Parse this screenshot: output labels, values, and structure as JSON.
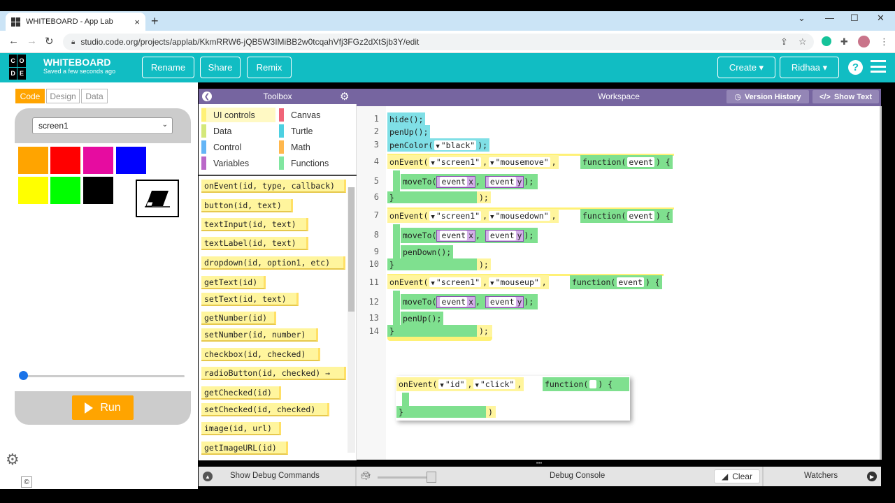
{
  "browser": {
    "tab_title": "WHITEBOARD - App Lab",
    "tab_close": "×",
    "new_tab": "+",
    "url": "studio.code.org/projects/applab/KkmRRW6-jQB5W3IMiBB2w0tcqahVfj3FGz2dXtSjb3Y/edit"
  },
  "header": {
    "logo_letters": [
      "C",
      "O",
      "D",
      "E"
    ],
    "project_title": "WHITEBOARD",
    "saved_status": "Saved a few seconds ago",
    "rename": "Rename",
    "share": "Share",
    "remix": "Remix",
    "create": "Create ▾",
    "user": "Ridhaa ▾",
    "help": "?"
  },
  "modes": {
    "code": "Code",
    "design": "Design",
    "data": "Data"
  },
  "app_preview": {
    "screen_select": "screen1",
    "swatch_colors": [
      "#ffa400",
      "#ff0000",
      "#e60ca0",
      "#0000ff",
      "#ffff00",
      "#00ff00",
      "#000000"
    ],
    "slider_value": 0.02,
    "run": "Run"
  },
  "toolbox": {
    "title": "Toolbox",
    "categories": [
      {
        "label": "UI controls",
        "color": "#fff176"
      },
      {
        "label": "Canvas",
        "color": "#f06478"
      },
      {
        "label": "Data",
        "color": "#d4e87a"
      },
      {
        "label": "Turtle",
        "color": "#4dd0e1"
      },
      {
        "label": "Control",
        "color": "#64b5f6"
      },
      {
        "label": "Math",
        "color": "#ffb74d"
      },
      {
        "label": "Variables",
        "color": "#ba68c8"
      },
      {
        "label": "Functions",
        "color": "#81e6a0"
      }
    ],
    "blocks": [
      "onEvent(id, type, callback)",
      "button(id, text)",
      "textInput(id, text)",
      "textLabel(id, text)",
      "dropdown(id, option1, etc)",
      "getText(id)",
      "setText(id, text)",
      "getNumber(id)",
      "setNumber(id, number)",
      "checkbox(id, checked)",
      "radioButton(id, checked) →",
      "getChecked(id)",
      "setChecked(id, checked)",
      "image(id, url)",
      "getImageURL(id)"
    ]
  },
  "workspace": {
    "title": "Workspace",
    "version_history": "Version History",
    "show_text": "Show Text",
    "line_numbers": [
      "1",
      "2",
      "3",
      "4",
      "5",
      "6",
      "7",
      "8",
      "9",
      "10",
      "11",
      "12",
      "13",
      "14"
    ],
    "code": {
      "hide": "hide();",
      "penup": "penUp();",
      "pencolor": "penColor(",
      "black": "\"black\"",
      "close_paren_semi": ");",
      "onevent": "onEvent(",
      "screen1": "\"screen1\"",
      "comma": ",",
      "mousemove": "\"mousemove\"",
      "mousedown": "\"mousedown\"",
      "mouseup": "\"mouseup\"",
      "function_kw": "function(",
      "event": "event",
      "close_brace_open": ") {",
      "moveto": "moveTo(",
      "event_x_obj": "event",
      "x": "x",
      "y": "y",
      "pendown": "penDown();",
      "penup2": "penUp();",
      "brace_close": "}",
      "end_paren": ");",
      "id": "\"id\"",
      "click": "\"click\"",
      "function_kw2": "function(",
      "close2": ") {",
      "end2": ")"
    }
  },
  "bottom": {
    "show_debug": "Show Debug Commands",
    "debug_console": "Debug Console",
    "clear": "Clear",
    "watchers": "Watchers"
  }
}
